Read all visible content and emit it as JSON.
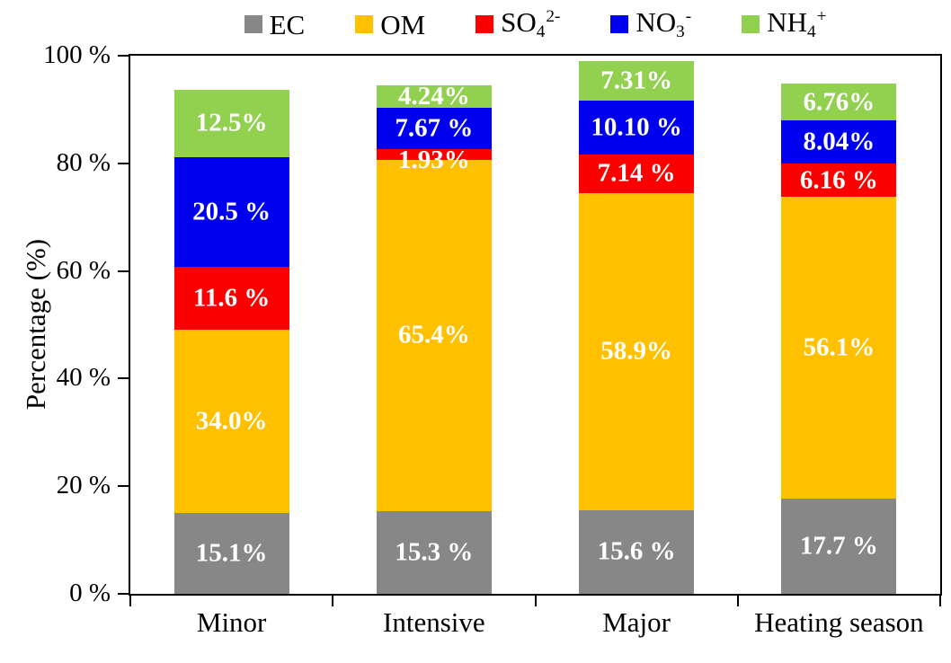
{
  "colors": {
    "ec": "#878787",
    "om": "#FFC000",
    "so4": "#FC0000",
    "no3": "#0000EE",
    "nh4": "#92D050",
    "axis": "#000000",
    "bar_label_text": "#FFFFFF",
    "background": "#FFFFFF"
  },
  "legend": [
    {
      "name": "EC",
      "color": "#878787",
      "label_base": "EC",
      "label_sub": "",
      "label_sup": ""
    },
    {
      "name": "OM",
      "color": "#FFC000",
      "label_base": "OM",
      "label_sub": "",
      "label_sup": ""
    },
    {
      "name": "SO4 2-",
      "color": "#FC0000",
      "label_base": "SO",
      "label_sub": "4",
      "label_sup": "2-"
    },
    {
      "name": "NO3 -",
      "color": "#0000EE",
      "label_base": "NO",
      "label_sub": "3",
      "label_sup": "-"
    },
    {
      "name": "NH4 +",
      "color": "#92D050",
      "label_base": "NH",
      "label_sub": "4",
      "label_sup": "+"
    }
  ],
  "chart_data": {
    "type": "bar",
    "stacked": true,
    "title": "",
    "xlabel": "",
    "ylabel": "Percentage (%)",
    "ylim": [
      0,
      100
    ],
    "grid": false,
    "legend_position": "top",
    "categories": [
      "Minor",
      "Intensive",
      "Major",
      "Heating season"
    ],
    "series": [
      {
        "name": "EC",
        "slug": "ec",
        "color": "#878787",
        "values": [
          15.1,
          15.3,
          15.6,
          17.7
        ],
        "labels": [
          "15.1%",
          "15.3 %",
          "15.6 %",
          "17.7 %"
        ]
      },
      {
        "name": "OM",
        "slug": "om",
        "color": "#FFC000",
        "values": [
          34.0,
          65.4,
          58.9,
          56.1
        ],
        "labels": [
          "34.0%",
          "65.4%",
          "58.9%",
          "56.1%"
        ]
      },
      {
        "name": "SO4 2-",
        "slug": "so4",
        "color": "#FC0000",
        "values": [
          11.6,
          1.93,
          7.14,
          6.16
        ],
        "labels": [
          "11.6 %",
          "1.93%",
          "7.14 %",
          "6.16 %"
        ]
      },
      {
        "name": "NO3 -",
        "slug": "no3",
        "color": "#0000EE",
        "values": [
          20.5,
          7.67,
          10.1,
          8.04
        ],
        "labels": [
          "20.5 %",
          "7.67 %",
          "10.10 %",
          "8.04%"
        ]
      },
      {
        "name": "NH4 +",
        "slug": "nh4",
        "color": "#92D050",
        "values": [
          12.5,
          4.24,
          7.31,
          6.76
        ],
        "labels": [
          "12.5%",
          "4.24%",
          "7.31%",
          "6.76%"
        ]
      }
    ],
    "ytick_values": [
      0,
      20,
      40,
      60,
      80,
      100
    ],
    "yticks": [
      "0 %",
      "20 %",
      "40 %",
      "60 %",
      "80 %",
      "100 %"
    ]
  }
}
